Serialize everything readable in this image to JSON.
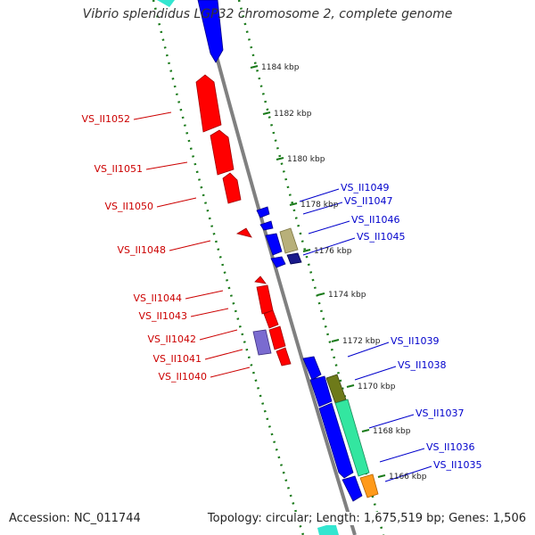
{
  "title": "Vibrio splendidus LGP32 chromosome 2, complete genome",
  "footer": {
    "accession": "Accession: NC_011744",
    "topology": "Topology: circular; Length: 1,675,519 bp; Genes: 1,506"
  },
  "colors": {
    "backbone": "#808080",
    "forward_strand": "#0000ff",
    "reverse_strand": "#ff0000",
    "tick_marks": "#1a7a1a",
    "label_reverse": "#cc0000",
    "label_forward": "#0000cc"
  },
  "scale": {
    "unit": "kbp",
    "ticks": [
      "1184 kbp",
      "1182 kbp",
      "1180 kbp",
      "1178 kbp",
      "1176 kbp",
      "1174 kbp",
      "1172 kbp",
      "1170 kbp",
      "1168 kbp",
      "1166 kbp"
    ]
  },
  "genes_reverse": [
    "VS_II1052",
    "VS_II1051",
    "VS_II1050",
    "VS_II1048",
    "VS_II1044",
    "VS_II1043",
    "VS_II1042",
    "VS_II1041",
    "VS_II1040"
  ],
  "genes_forward": [
    "VS_II1049",
    "VS_II1047",
    "VS_II1046",
    "VS_II1045",
    "VS_II1039",
    "VS_II1038",
    "VS_II1037",
    "VS_II1036",
    "VS_II1035"
  ]
}
